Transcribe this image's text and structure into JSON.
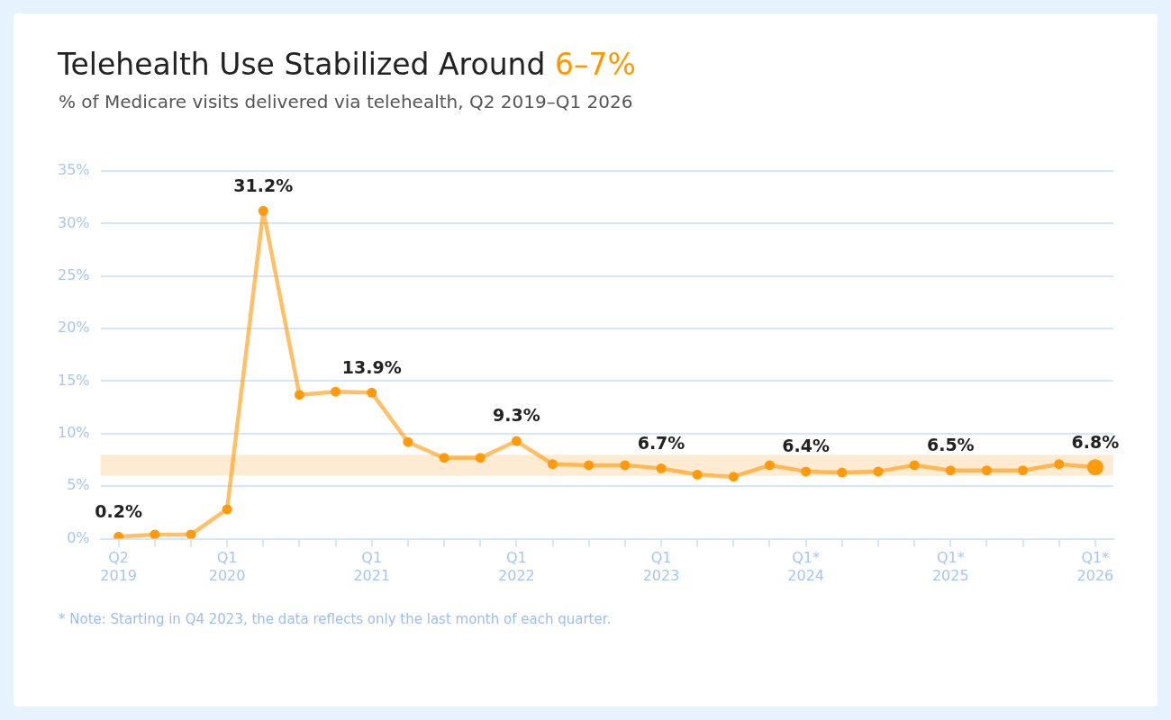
{
  "chart_data": {
    "type": "line",
    "title": "Telehealth Use Stabilized Around 6–7%",
    "subtitle": "% of Medicare visits delivered via telehealth, Q2 2019–Q1 2026",
    "categories": [
      "Q2\n2019",
      null,
      null,
      "Q1\n2020",
      null,
      null,
      null,
      "Q1\n2021",
      null,
      null,
      null,
      "Q1\n2022",
      null,
      null,
      null,
      "Q1\n2023",
      null,
      null,
      null,
      "Q1*\n2024",
      null,
      null,
      null,
      "Q1*\n2025",
      null,
      null,
      null,
      "Q1*\n2026"
    ],
    "series": [
      {
        "color": "#ff9a0a",
        "values": [
          0.2,
          0.4,
          0.4,
          2.8,
          31.2,
          13.7,
          14.0,
          13.9,
          9.2,
          7.7,
          7.7,
          9.3,
          7.1,
          7.0,
          7.0,
          6.7,
          6.1,
          5.9,
          7.0,
          6.4,
          6.3,
          6.4,
          7.0,
          6.5,
          6.5,
          6.5,
          7.1,
          6.8
        ],
        "value_labels": [
          "0.2%",
          null,
          null,
          null,
          "31.2%",
          null,
          null,
          "13.9%",
          null,
          null,
          null,
          "9.3%",
          null,
          null,
          null,
          "6.7%",
          null,
          null,
          null,
          "6.4%",
          null,
          null,
          null,
          "6.5%",
          null,
          null,
          null,
          "6.8%"
        ]
      }
    ],
    "ylim": [
      0,
      35
    ],
    "yticks": [
      {
        "value": 0,
        "label": "0%"
      },
      {
        "value": 5,
        "label": "5%"
      },
      {
        "value": 10,
        "label": "10%"
      },
      {
        "value": 15,
        "label": "15%"
      },
      {
        "value": 20,
        "label": "20%"
      },
      {
        "value": 25,
        "label": "25%"
      },
      {
        "value": 30,
        "label": "30%"
      },
      {
        "value": 35,
        "label": "35%"
      }
    ],
    "bands": [
      {
        "axis": "y",
        "from": 6,
        "to": 8,
        "color": "#fdebd3"
      }
    ],
    "grid": "y",
    "legend": false,
    "marker": "circle",
    "line_style": "solid",
    "annotations": [
      "* Note: Starting in Q4 2023, the data reflects only the last month of each quarter."
    ]
  }
}
